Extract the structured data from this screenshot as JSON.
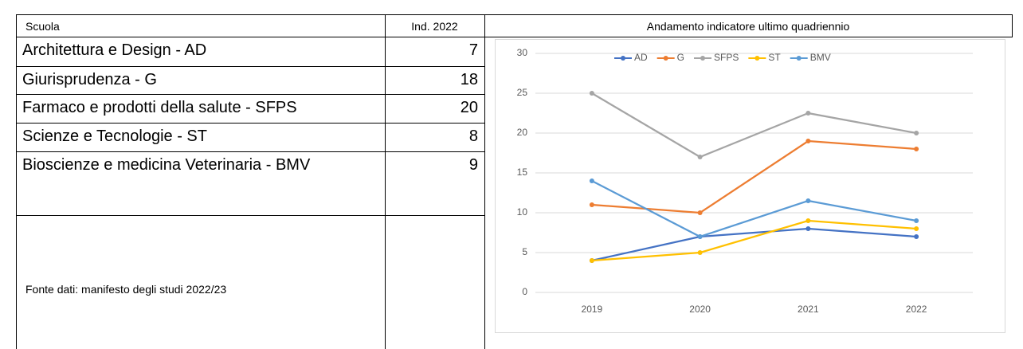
{
  "table": {
    "headers": [
      "Scuola",
      "Ind. 2022",
      "Andamento indicatore ultimo quadriennio"
    ],
    "rows": [
      [
        "Architettura e Design - AD",
        7
      ],
      [
        "Giurisprudenza - G",
        18
      ],
      [
        "Farmaco e prodotti della salute - SFPS",
        20
      ],
      [
        "Scienze e Tecnologie - ST",
        8
      ],
      [
        "Bioscienze e medicina Veterinaria - BMV",
        9
      ]
    ],
    "source": "Fonte dati: manifesto degli studi 2022/23"
  },
  "chart_data": {
    "type": "line",
    "categories": [
      "2019",
      "2020",
      "2021",
      "2022"
    ],
    "series": [
      {
        "name": "AD",
        "color": "#4472c4",
        "values": [
          4,
          7,
          8,
          7
        ]
      },
      {
        "name": "G",
        "color": "#ed7d31",
        "values": [
          11,
          10,
          19,
          18
        ]
      },
      {
        "name": "SFPS",
        "color": "#a5a5a5",
        "values": [
          25,
          17,
          22.5,
          20
        ]
      },
      {
        "name": "ST",
        "color": "#ffc000",
        "values": [
          4,
          5,
          9,
          8
        ]
      },
      {
        "name": "BMV",
        "color": "#5b9bd5",
        "values": [
          14,
          7,
          11.5,
          9
        ]
      }
    ],
    "ylim": [
      0,
      30
    ],
    "yticks": [
      0,
      5,
      10,
      15,
      20,
      25,
      30
    ],
    "grid": true,
    "legend": "top"
  }
}
